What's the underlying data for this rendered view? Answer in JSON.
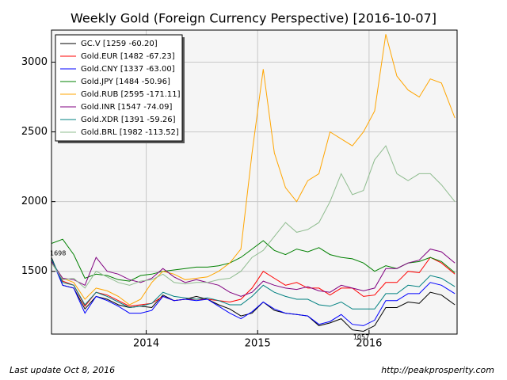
{
  "chart_data": {
    "type": "line",
    "title": "Weekly Gold (Foreign Currency Perspective)  [2016-10-07]",
    "x": [
      2013.15,
      2013.25,
      2013.35,
      2013.45,
      2013.55,
      2013.65,
      2013.75,
      2013.85,
      2013.95,
      2014.05,
      2014.15,
      2014.25,
      2014.35,
      2014.45,
      2014.55,
      2014.65,
      2014.75,
      2014.85,
      2014.95,
      2015.05,
      2015.15,
      2015.25,
      2015.35,
      2015.45,
      2015.55,
      2015.65,
      2015.75,
      2015.85,
      2015.95,
      2016.05,
      2016.15,
      2016.25,
      2016.35,
      2016.45,
      2016.55,
      2016.65,
      2016.77
    ],
    "xlim": [
      2013.15,
      2016.79
    ],
    "xticks": [
      2014,
      2015,
      2016
    ],
    "ylim": [
      1050,
      3230
    ],
    "yticks": [
      1500,
      2000,
      2500,
      3000
    ],
    "grid": true,
    "legend": "upper left",
    "series": [
      {
        "name": "GC.V [1259 -60.20]",
        "color": "#000000",
        "values": [
          1600,
          1400,
          1380,
          1230,
          1320,
          1300,
          1260,
          1240,
          1250,
          1240,
          1330,
          1290,
          1300,
          1320,
          1300,
          1260,
          1230,
          1180,
          1200,
          1280,
          1220,
          1200,
          1190,
          1180,
          1110,
          1130,
          1160,
          1080,
          1070,
          1110,
          1240,
          1240,
          1280,
          1270,
          1350,
          1330,
          1260
        ]
      },
      {
        "name": "Gold.EUR [1482 -67.23]",
        "color": "#ff0000",
        "values": [
          1580,
          1430,
          1400,
          1250,
          1350,
          1330,
          1290,
          1250,
          1260,
          1270,
          1320,
          1290,
          1300,
          1300,
          1300,
          1290,
          1280,
          1300,
          1380,
          1500,
          1450,
          1400,
          1420,
          1380,
          1380,
          1330,
          1380,
          1380,
          1320,
          1330,
          1420,
          1420,
          1500,
          1490,
          1600,
          1560,
          1480
        ]
      },
      {
        "name": "Gold.CNY [1337 -63.00]",
        "color": "#0000ff",
        "values": [
          1590,
          1400,
          1380,
          1200,
          1320,
          1290,
          1250,
          1200,
          1200,
          1220,
          1320,
          1290,
          1300,
          1290,
          1300,
          1250,
          1200,
          1160,
          1210,
          1280,
          1230,
          1200,
          1190,
          1180,
          1120,
          1140,
          1190,
          1120,
          1110,
          1150,
          1290,
          1290,
          1340,
          1340,
          1420,
          1400,
          1340
        ]
      },
      {
        "name": "Gold.JPY [1484 -50.96]",
        "color": "#008000",
        "values": [
          1700,
          1730,
          1620,
          1450,
          1480,
          1470,
          1440,
          1430,
          1470,
          1480,
          1500,
          1510,
          1520,
          1530,
          1530,
          1540,
          1560,
          1600,
          1660,
          1720,
          1650,
          1620,
          1660,
          1640,
          1670,
          1620,
          1600,
          1590,
          1560,
          1500,
          1540,
          1520,
          1560,
          1570,
          1600,
          1570,
          1490
        ]
      },
      {
        "name": "Gold.RUB [2595 -171.11]",
        "color": "#ffa500",
        "values": [
          1560,
          1450,
          1420,
          1300,
          1380,
          1360,
          1320,
          1260,
          1300,
          1420,
          1500,
          1480,
          1440,
          1450,
          1460,
          1500,
          1560,
          1660,
          2350,
          2950,
          2350,
          2100,
          2000,
          2150,
          2200,
          2500,
          2450,
          2400,
          2500,
          2650,
          3200,
          2900,
          2800,
          2750,
          2880,
          2850,
          2600
        ]
      },
      {
        "name": "Gold.INR [1547 -74.09]",
        "color": "#800080",
        "values": [
          1570,
          1450,
          1440,
          1400,
          1600,
          1500,
          1480,
          1440,
          1420,
          1450,
          1520,
          1460,
          1420,
          1440,
          1420,
          1400,
          1350,
          1320,
          1350,
          1430,
          1400,
          1380,
          1370,
          1390,
          1360,
          1350,
          1400,
          1380,
          1360,
          1380,
          1520,
          1520,
          1560,
          1580,
          1660,
          1640,
          1560
        ]
      },
      {
        "name": "Gold.XDR [1391 -59.26]",
        "color": "#008080",
        "values": [
          1590,
          1420,
          1400,
          1260,
          1350,
          1320,
          1280,
          1240,
          1250,
          1270,
          1350,
          1320,
          1310,
          1300,
          1310,
          1290,
          1260,
          1260,
          1320,
          1400,
          1350,
          1320,
          1300,
          1300,
          1260,
          1250,
          1280,
          1230,
          1230,
          1230,
          1340,
          1340,
          1400,
          1390,
          1470,
          1450,
          1390
        ]
      },
      {
        "name": "Gold.BRL [1982 -113.52]",
        "color": "#8fbc8f",
        "values": [
          1560,
          1440,
          1450,
          1380,
          1500,
          1460,
          1420,
          1400,
          1430,
          1440,
          1480,
          1420,
          1410,
          1420,
          1420,
          1440,
          1450,
          1500,
          1600,
          1650,
          1750,
          1850,
          1780,
          1800,
          1850,
          2000,
          2200,
          2050,
          2080,
          2300,
          2400,
          2200,
          2150,
          2200,
          2200,
          2120,
          2000
        ]
      }
    ],
    "annotations": [
      "1698",
      "1057"
    ],
    "footer_left": "Last update Oct  8, 2016",
    "footer_right": "http://peakprosperity.com"
  }
}
